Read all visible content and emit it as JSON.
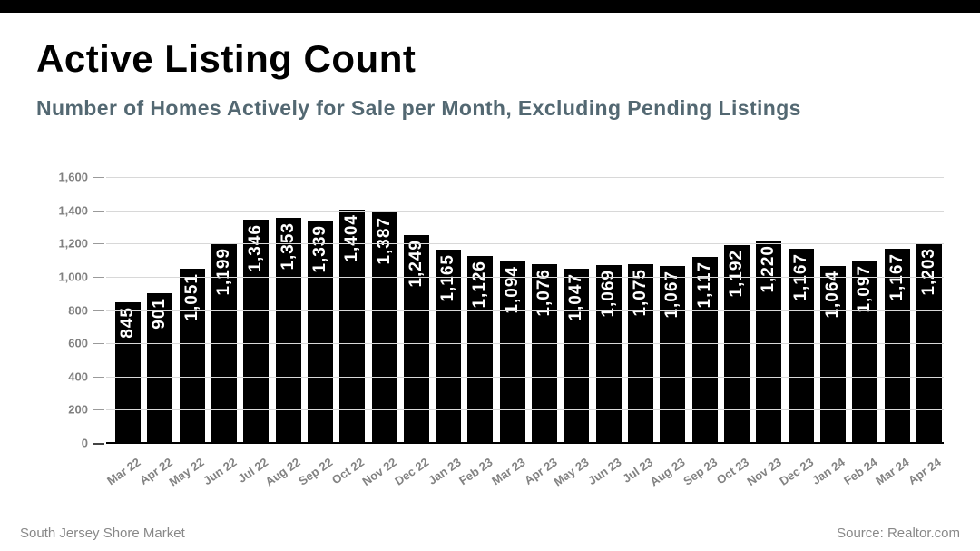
{
  "header": {
    "title": "Active Listing Count",
    "subtitle": "Number of Homes Actively for Sale per Month, Excluding Pending Listings"
  },
  "footer": {
    "left": "South Jersey Shore Market",
    "right": "Source: Realtor.com"
  },
  "colors": {
    "top_bar": "#000000",
    "bar": "#000000",
    "bar_label": "#ffffff",
    "subtitle": "#536872",
    "axis_text": "#808080",
    "gridline": "#d8d8d8",
    "baseline": "#000000"
  },
  "chart_data": {
    "type": "bar",
    "title": "Active Listing Count",
    "subtitle": "Number of Homes Actively for Sale per Month, Excluding Pending Listings",
    "categories": [
      "Mar 22",
      "Apr 22",
      "May 22",
      "Jun 22",
      "Jul 22",
      "Aug 22",
      "Sep 22",
      "Oct 22",
      "Nov 22",
      "Dec 22",
      "Jan 23",
      "Feb 23",
      "Mar 23",
      "Apr 23",
      "May 23",
      "Jun 23",
      "Jul 23",
      "Aug 23",
      "Sep 23",
      "Oct 23",
      "Nov 23",
      "Dec 23",
      "Jan 24",
      "Feb 24",
      "Mar 24",
      "Apr 24"
    ],
    "values": [
      845,
      901,
      1051,
      1199,
      1346,
      1353,
      1339,
      1404,
      1387,
      1249,
      1165,
      1126,
      1094,
      1076,
      1047,
      1069,
      1075,
      1067,
      1117,
      1192,
      1220,
      1167,
      1064,
      1097,
      1167,
      1203
    ],
    "value_labels": [
      "845",
      "901",
      "1,051",
      "1,199",
      "1,346",
      "1,353",
      "1,339",
      "1,404",
      "1,387",
      "1,249",
      "1,165",
      "1,126",
      "1,094",
      "1,076",
      "1,047",
      "1,069",
      "1,075",
      "1,067",
      "1,117",
      "1,192",
      "1,220",
      "1,167",
      "1,064",
      "1,097",
      "1,167",
      "1,203"
    ],
    "xlabel": "",
    "ylabel": "",
    "ylim": [
      0,
      1600
    ],
    "ytick_step": 200,
    "ytick_values": [
      0,
      200,
      400,
      600,
      800,
      1000,
      1200,
      1400,
      1600
    ],
    "ytick_labels": [
      "0",
      "200",
      "400",
      "600",
      "800",
      "1,000",
      "1,200",
      "1,400",
      "1,600"
    ],
    "grid": true,
    "legend": false,
    "bar_color": "#000000",
    "bar_label_position": "inside-top-rotated"
  }
}
